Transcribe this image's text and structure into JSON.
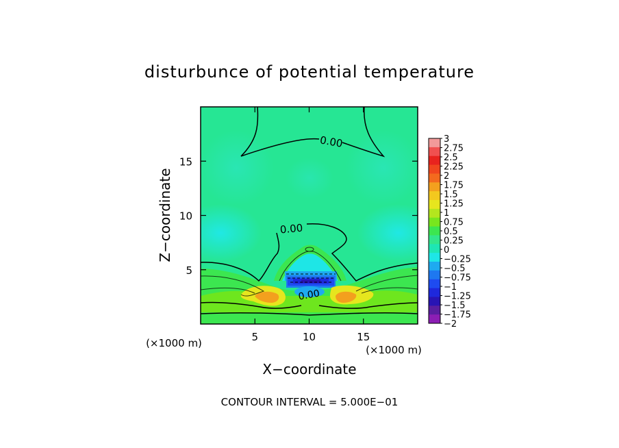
{
  "chart_data": {
    "type": "heatmap",
    "title": "disturbunce of potential temperature",
    "xlabel": "X−coordinate",
    "ylabel": "Z−coordinate",
    "x_unit": "(×1000 m)",
    "y_unit": "(×1000 m)",
    "xlim": [
      0,
      20
    ],
    "ylim": [
      0,
      20
    ],
    "x_ticks": [
      5,
      10,
      15
    ],
    "y_ticks": [
      5,
      10,
      15
    ],
    "x_tick_labels": [
      "5",
      "10",
      "15"
    ],
    "y_tick_labels": [
      "5",
      "10",
      "15"
    ],
    "footer": "CONTOUR INTERVAL = 5.000E−01",
    "contour_labels": [
      {
        "text": "0.00",
        "x": 12.2,
        "z": 16.6
      },
      {
        "text": "0.00",
        "x": 7.0,
        "z": 8.6
      },
      {
        "text": "0.00",
        "x": 9.8,
        "z": 2.7
      }
    ],
    "colorbar": {
      "levels": [
        3,
        2.75,
        2.5,
        2.25,
        2,
        1.75,
        1.5,
        1.25,
        1,
        0.75,
        0.5,
        0.25,
        0,
        -0.25,
        -0.5,
        -0.75,
        -1,
        -1.25,
        -1.5,
        -1.75,
        -2
      ],
      "labels": [
        "3",
        "2.75",
        "2.5",
        "2.25",
        "2",
        "1.75",
        "1.5",
        "1.25",
        "1",
        "0.75",
        "0.5",
        "0.25",
        "0",
        "−0.25",
        "−0.5",
        "−0.75",
        "−1",
        "−1.25",
        "−1.5",
        "−1.75",
        "−2"
      ],
      "colors": [
        "#f29a9a",
        "#f05050",
        "#e8231e",
        "#f0461e",
        "#f36a1e",
        "#f3a01e",
        "#f3c81e",
        "#e6e61e",
        "#b4e61e",
        "#78e61e",
        "#3ce650",
        "#32e68c",
        "#1ee6b4",
        "#1ee6e6",
        "#1eaaf0",
        "#1e78f0",
        "#1e4bf0",
        "#1e28dc",
        "#2814b4",
        "#5a1ea0",
        "#8c1eb4"
      ]
    }
  }
}
